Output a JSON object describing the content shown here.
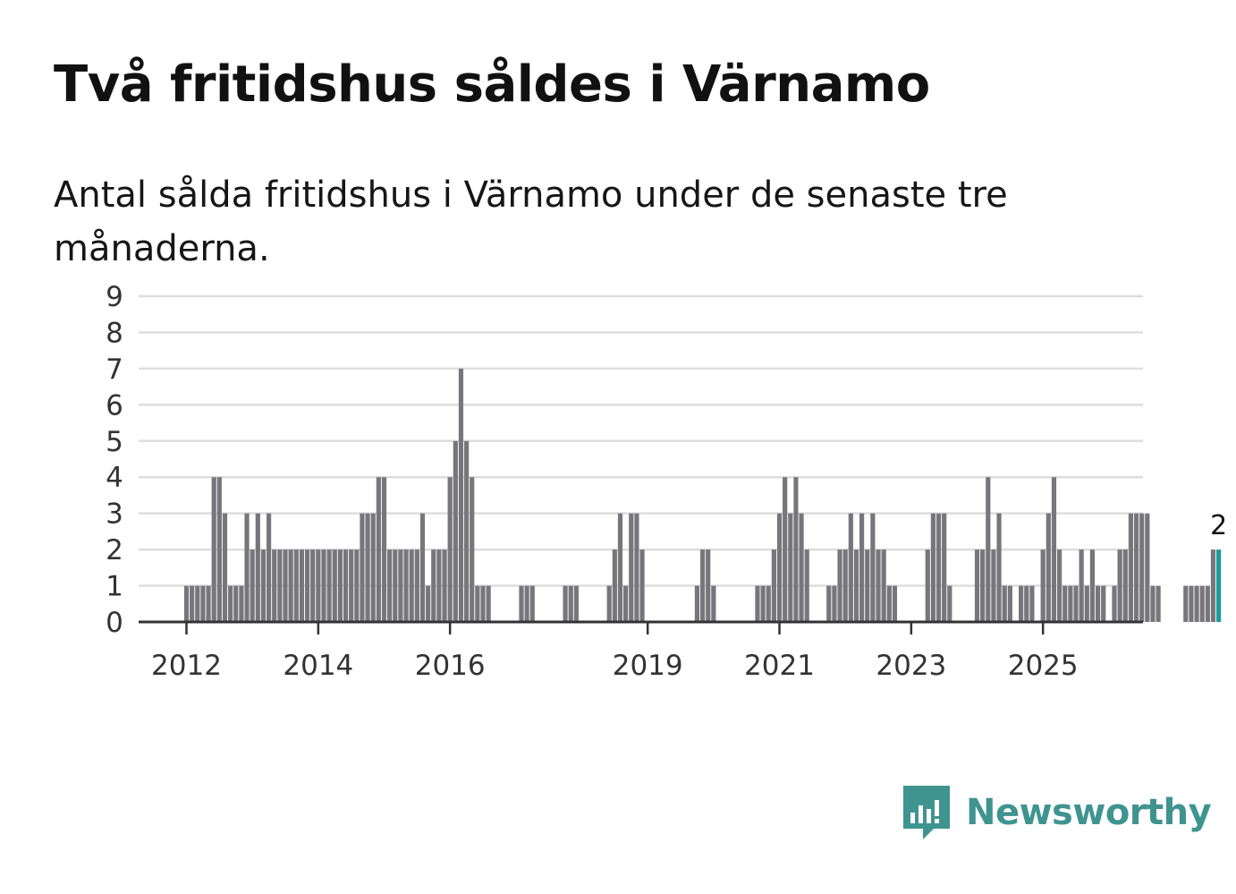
{
  "title": "Två fritidshus såldes i Värnamo",
  "subtitle": "Antal sålda fritidshus i Värnamo under de senaste tre månaderna.",
  "brand": {
    "name": "Newsworthy",
    "color": "#3f948f",
    "icon": "speech-bubble-bar-chart-icon"
  },
  "colors": {
    "bar": "#77777b",
    "highlight": "#1d9a9c",
    "grid": "#dddddd",
    "axis": "#333333"
  },
  "chart_data": {
    "type": "bar",
    "ylim": [
      0,
      9
    ],
    "yticks": [
      "0",
      "1",
      "2",
      "3",
      "4",
      "5",
      "6",
      "7",
      "8",
      "9"
    ],
    "xticks": [
      {
        "label": "2012",
        "month": "2012-01"
      },
      {
        "label": "2014",
        "month": "2014-01"
      },
      {
        "label": "2016",
        "month": "2016-01"
      },
      {
        "label": "2019",
        "month": "2019-01"
      },
      {
        "label": "2021",
        "month": "2021-01"
      },
      {
        "label": "2023",
        "month": "2023-01"
      },
      {
        "label": "2025",
        "month": "2025-01"
      }
    ],
    "first_month": "2011-04",
    "values": [
      0,
      0,
      0,
      0,
      0,
      0,
      0,
      0,
      0,
      1,
      1,
      1,
      1,
      1,
      4,
      4,
      3,
      1,
      1,
      1,
      3,
      2,
      3,
      2,
      3,
      2,
      2,
      2,
      2,
      2,
      2,
      2,
      2,
      2,
      2,
      2,
      2,
      2,
      2,
      2,
      2,
      3,
      3,
      3,
      4,
      4,
      2,
      2,
      2,
      2,
      2,
      2,
      3,
      1,
      2,
      2,
      2,
      4,
      5,
      7,
      5,
      4,
      1,
      1,
      1,
      0,
      0,
      0,
      0,
      0,
      1,
      1,
      1,
      0,
      0,
      0,
      0,
      0,
      1,
      1,
      1,
      0,
      0,
      0,
      0,
      0,
      1,
      2,
      3,
      1,
      3,
      3,
      2,
      0,
      0,
      0,
      0,
      0,
      0,
      0,
      0,
      0,
      1,
      2,
      2,
      1,
      0,
      0,
      0,
      0,
      0,
      0,
      0,
      1,
      1,
      1,
      2,
      3,
      4,
      3,
      4,
      3,
      2,
      0,
      0,
      0,
      1,
      1,
      2,
      2,
      3,
      2,
      3,
      2,
      3,
      2,
      2,
      1,
      1,
      0,
      0,
      0,
      0,
      0,
      2,
      3,
      3,
      3,
      1,
      0,
      0,
      0,
      0,
      2,
      2,
      4,
      2,
      3,
      1,
      1,
      0,
      1,
      1,
      1,
      0,
      2,
      3,
      4,
      2,
      1,
      1,
      1,
      2,
      1,
      2,
      1,
      1,
      0,
      1,
      2,
      2,
      3,
      3,
      3,
      3,
      1,
      1,
      0,
      0,
      0,
      0,
      1,
      1,
      1,
      1,
      1,
      2,
      2
    ],
    "highlight_label": "2"
  }
}
